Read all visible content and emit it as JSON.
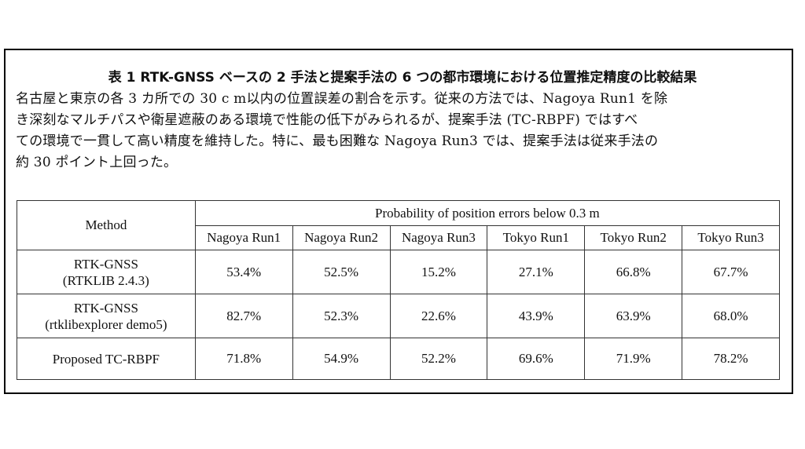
{
  "caption": {
    "title": "表 1 RTK-GNSS ベースの 2 手法と提案手法の 6 つの都市環境における位置推定精度の比較結果",
    "lines": [
      "名古屋と東京の各 3 カ所での 30 c m以内の位置誤差の割合を示す。従来の方法では、Nagoya Run1 を除",
      "き深刻なマルチパスや衛星遮蔽のある環境で性能の低下がみられるが、提案手法 (TC-RBPF) ではすべ",
      "ての環境で一貫して高い精度を維持した。特に、最も困難な Nagoya Run3 では、提案手法は従来手法の",
      "約 30 ポイント上回った。"
    ]
  },
  "table": {
    "method_header": "Method",
    "group_header": "Probability of position errors below 0.3 m",
    "columns": [
      "Nagoya Run1",
      "Nagoya Run2",
      "Nagoya Run3",
      "Tokyo Run1",
      "Tokyo Run2",
      "Tokyo Run3"
    ],
    "rows": [
      {
        "method_line1": "RTK-GNSS",
        "method_line2": "(RTKLIB 2.4.3)",
        "values": [
          "53.4%",
          "52.5%",
          "15.2%",
          "27.1%",
          "66.8%",
          "67.7%"
        ]
      },
      {
        "method_line1": "RTK-GNSS",
        "method_line2": "(rtklibexplorer demo5)",
        "values": [
          "82.7%",
          "52.3%",
          "22.6%",
          "43.9%",
          "63.9%",
          "68.0%"
        ]
      },
      {
        "method_line1": "Proposed TC-RBPF",
        "method_line2": "",
        "values": [
          "71.8%",
          "54.9%",
          "52.2%",
          "69.6%",
          "71.9%",
          "78.2%"
        ]
      }
    ]
  }
}
